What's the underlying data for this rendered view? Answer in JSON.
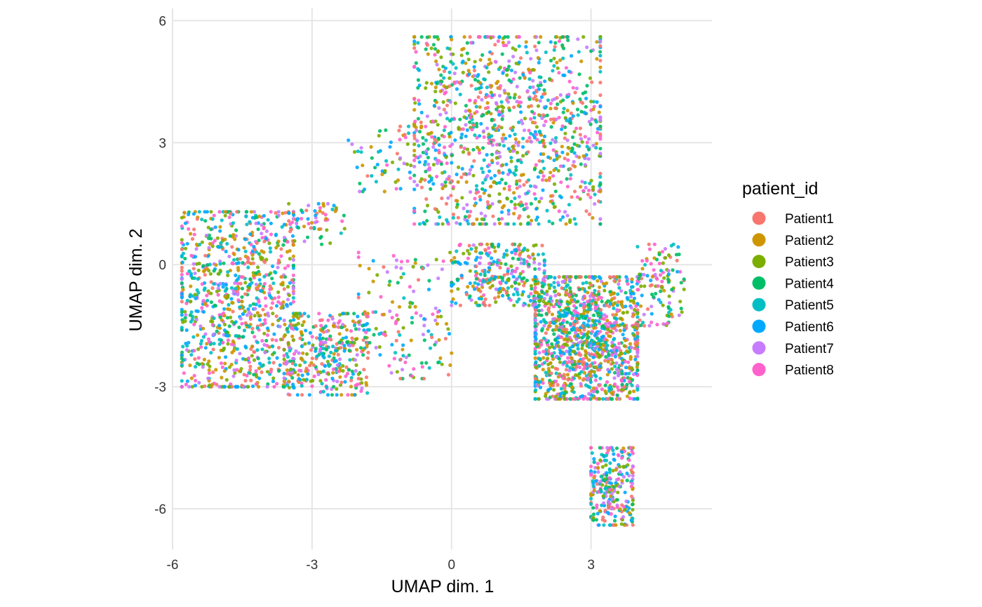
{
  "chart_data": {
    "type": "scatter",
    "title": "",
    "xlabel": "UMAP dim. 1",
    "ylabel": "UMAP dim. 2",
    "xlim": [
      -6.0,
      5.6
    ],
    "ylim": [
      -7.0,
      6.3
    ],
    "x_ticks": [
      -6,
      -3,
      0,
      3
    ],
    "x_tick_labels": [
      "-6",
      "-3",
      "0",
      "3"
    ],
    "y_ticks": [
      -6,
      -3,
      0,
      3,
      6
    ],
    "y_tick_labels": [
      "-6",
      "-3",
      "0",
      "3",
      "6"
    ],
    "grid": true,
    "legend_title": "patient_id",
    "legend_position": "right",
    "series": [
      {
        "name": "Patient1",
        "color": "#F8766D"
      },
      {
        "name": "Patient2",
        "color": "#CD9600"
      },
      {
        "name": "Patient3",
        "color": "#7CAE00"
      },
      {
        "name": "Patient4",
        "color": "#00BE67"
      },
      {
        "name": "Patient5",
        "color": "#00BFC4"
      },
      {
        "name": "Patient6",
        "color": "#00A9FF"
      },
      {
        "name": "Patient7",
        "color": "#C77CFF"
      },
      {
        "name": "Patient8",
        "color": "#FF61CC"
      }
    ],
    "point_regions": [
      {
        "region": "left-cluster",
        "x_range": [
          -5.8,
          -3.4
        ],
        "y_range": [
          -3.0,
          1.3
        ],
        "count": 900
      },
      {
        "region": "left-lower-band",
        "x_range": [
          -3.6,
          -1.8
        ],
        "y_range": [
          -3.2,
          -1.2
        ],
        "count": 350
      },
      {
        "region": "left-arm",
        "x_range": [
          -3.5,
          -2.3
        ],
        "y_range": [
          0.5,
          1.5
        ],
        "count": 60
      },
      {
        "region": "upper-diagonal-arm",
        "x_range": [
          -2.3,
          0.0
        ],
        "y_range": [
          1.8,
          3.4
        ],
        "count": 90
      },
      {
        "region": "middle-scatter",
        "x_range": [
          -2.0,
          0.0
        ],
        "y_range": [
          -2.8,
          0.3
        ],
        "count": 150
      },
      {
        "region": "upper-cluster",
        "x_range": [
          -0.8,
          3.2
        ],
        "y_range": [
          1.0,
          5.6
        ],
        "count": 1100
      },
      {
        "region": "center-band",
        "x_range": [
          0.0,
          2.0
        ],
        "y_range": [
          -1.0,
          0.5
        ],
        "count": 300
      },
      {
        "region": "right-cluster",
        "x_range": [
          1.8,
          4.0
        ],
        "y_range": [
          -3.3,
          -0.3
        ],
        "count": 1200
      },
      {
        "region": "right-arm",
        "x_range": [
          4.0,
          5.0
        ],
        "y_range": [
          -1.5,
          0.5
        ],
        "count": 120
      },
      {
        "region": "bottom-tail",
        "x_range": [
          3.0,
          3.9
        ],
        "y_range": [
          -6.4,
          -4.5
        ],
        "count": 260
      }
    ]
  }
}
